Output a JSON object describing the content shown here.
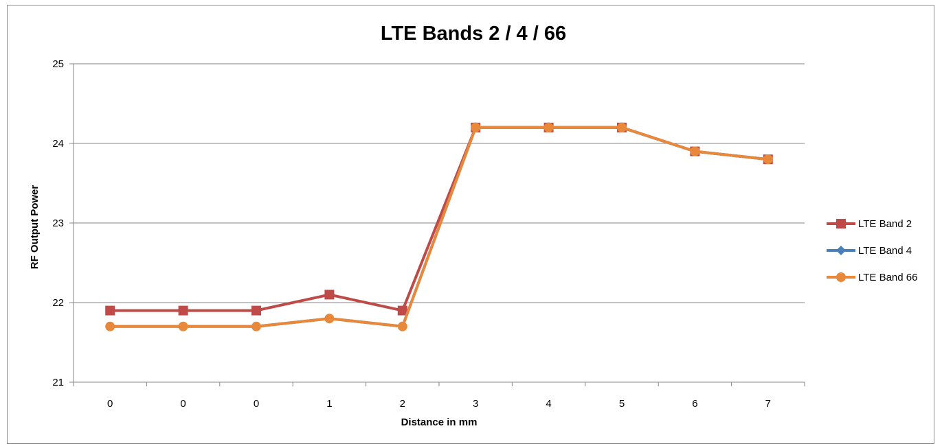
{
  "chart_data": {
    "type": "line",
    "title": "LTE Bands 2 / 4 / 66",
    "xlabel": "Distance in mm",
    "ylabel": "RF Output Power",
    "categories": [
      "0",
      "0",
      "0",
      "1",
      "2",
      "3",
      "4",
      "5",
      "6",
      "7"
    ],
    "ylim": [
      21,
      25
    ],
    "yticks": [
      21,
      22,
      23,
      24,
      25
    ],
    "grid": true,
    "legend_position": "right",
    "series": [
      {
        "name": "LTE Band 2",
        "color": "#be4b48",
        "marker": "square",
        "values": [
          21.9,
          21.9,
          21.9,
          22.1,
          21.9,
          24.2,
          24.2,
          24.2,
          23.9,
          23.8
        ]
      },
      {
        "name": "LTE Band 4",
        "color": "#4a7ebb",
        "marker": "diamond",
        "values": [
          21.7,
          21.7,
          21.7,
          21.8,
          21.7,
          24.2,
          24.2,
          24.2,
          23.9,
          23.8
        ]
      },
      {
        "name": "LTE Band 66",
        "color": "#e8883a",
        "marker": "circle",
        "values": [
          21.7,
          21.7,
          21.7,
          21.8,
          21.7,
          24.2,
          24.2,
          24.2,
          23.9,
          23.8
        ]
      }
    ]
  }
}
